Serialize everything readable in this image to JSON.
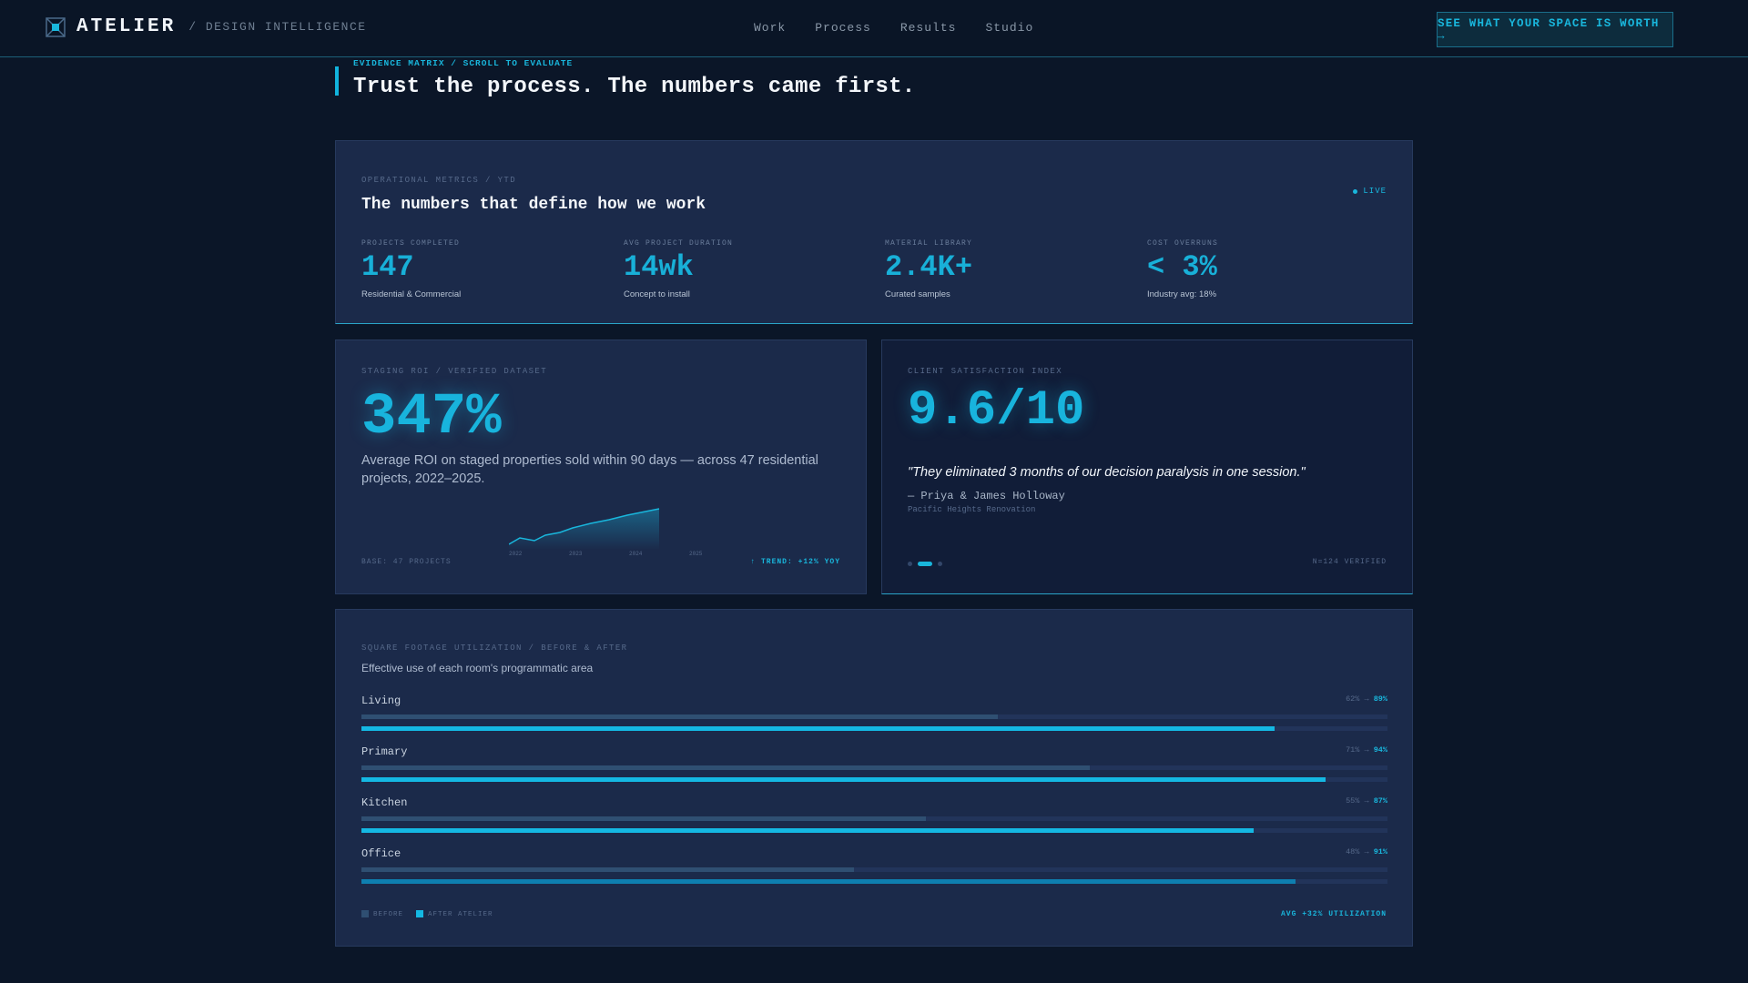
{
  "header": {
    "logo": "ATELIER",
    "tagline": "/ DESIGN INTELLIGENCE",
    "nav": [
      "Work",
      "Process",
      "Results",
      "Studio"
    ],
    "cta": "SEE WHAT YOUR SPACE IS WORTH →"
  },
  "section": {
    "eyebrow": "EVIDENCE MATRIX / SCROLL TO EVALUATE",
    "headline": "Trust the process. The numbers came first."
  },
  "metrics_card": {
    "label": "OPERATIONAL METRICS / YTD",
    "title": "The numbers that define how we work",
    "live": "LIVE",
    "metrics": [
      {
        "label": "PROJECTS COMPLETED",
        "value": "147",
        "sub": "Residential & Commercial"
      },
      {
        "label": "AVG PROJECT DURATION",
        "value": "14wk",
        "sub": "Concept to install"
      },
      {
        "label": "MATERIAL LIBRARY",
        "value": "2.4K+",
        "sub": "Curated samples"
      },
      {
        "label": "COST OVERRUNS",
        "value": "< 3%",
        "sub": "Industry avg: 18%"
      }
    ]
  },
  "roi_card": {
    "label": "STAGING ROI / VERIFIED DATASET",
    "value": "347%",
    "description": "Average ROI on staged properties sold within 90 days — across 47 residential projects, 2022–2025.",
    "sparkline_years": [
      "2022",
      "2023",
      "2024",
      "2025"
    ],
    "foot_left": "BASE: 47 PROJECTS",
    "foot_right": "↑ TREND: +12% YOY"
  },
  "satisfaction_card": {
    "label": "CLIENT SATISFACTION INDEX",
    "value": "9.6/10",
    "quote": "\"They eliminated 3 months of our decision paralysis in one session.\"",
    "author": "— Priya & James Holloway",
    "place": "Pacific Heights Renovation",
    "foot_right": "N=124 VERIFIED"
  },
  "utilization_card": {
    "label": "SQUARE FOOTAGE UTILIZATION / BEFORE & AFTER",
    "subtitle": "Effective use of each room's programmatic area",
    "rooms": [
      {
        "name": "Living",
        "before": "62%",
        "after": "89%",
        "before_pct": 62,
        "after_pct": 89
      },
      {
        "name": "Primary",
        "before": "71%",
        "after": "94%",
        "before_pct": 71,
        "after_pct": 94
      },
      {
        "name": "Kitchen",
        "before": "55%",
        "after": "87%",
        "before_pct": 55,
        "after_pct": 87
      },
      {
        "name": "Office",
        "before": "48%",
        "after": "91%",
        "before_pct": 48,
        "after_pct": 91
      }
    ],
    "legend_before": "BEFORE",
    "legend_after": "AFTER ATELIER",
    "foot_right": "AVG +32% UTILIZATION"
  },
  "colors": {
    "accent": "#19b6dc",
    "background": "#0b1628",
    "card": "#1b2a4a"
  }
}
